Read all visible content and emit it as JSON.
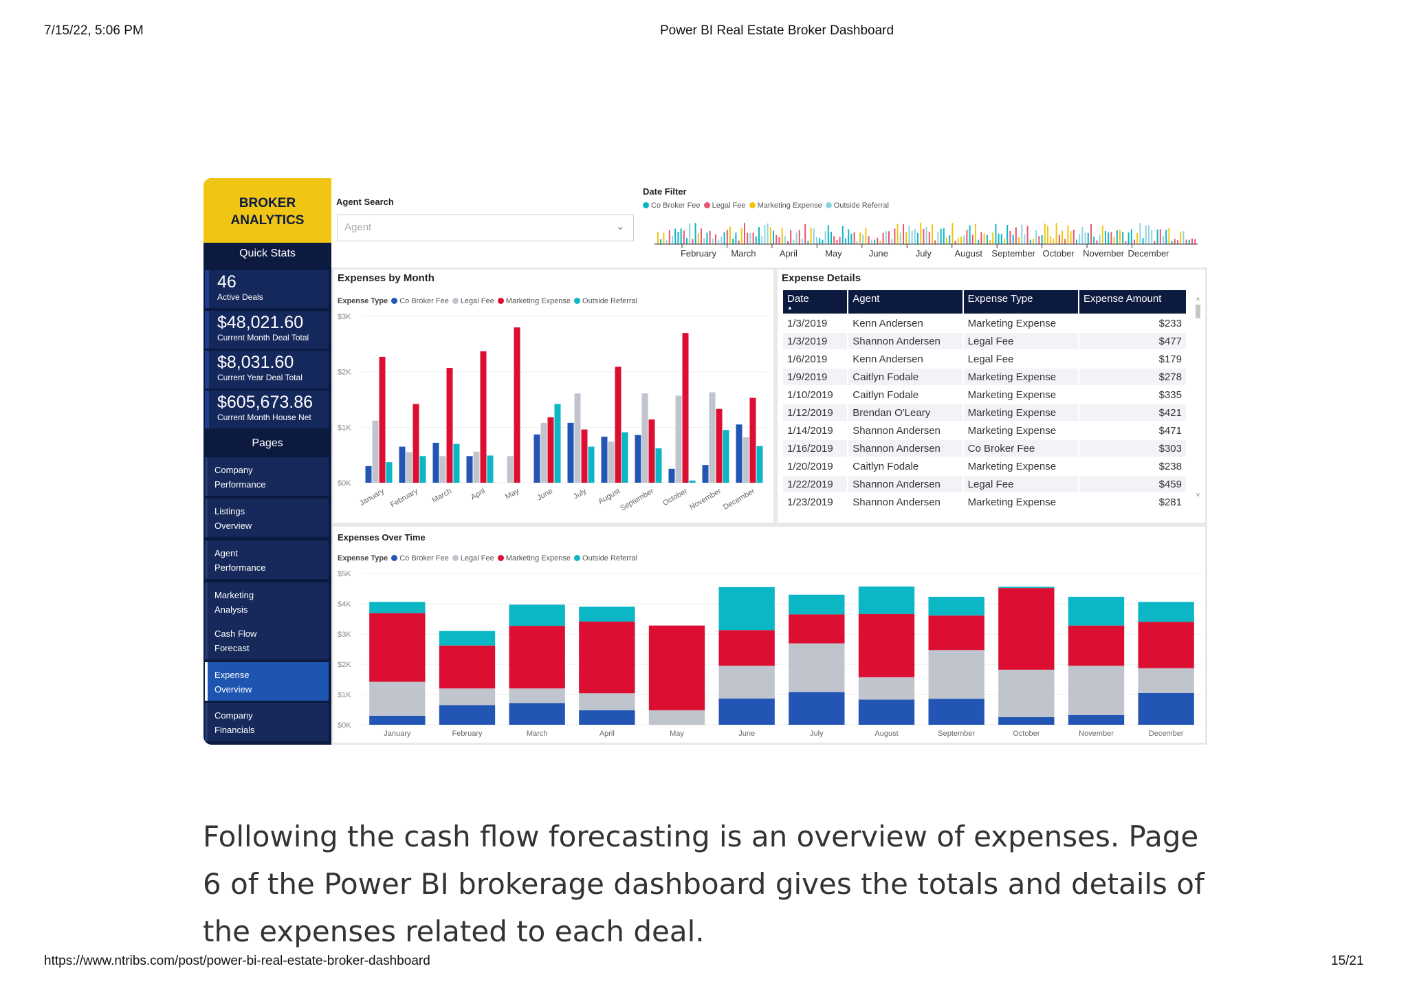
{
  "print_header": {
    "datetime": "7/15/22, 5:06 PM",
    "title": "Power BI Real Estate Broker Dashboard"
  },
  "print_footer": {
    "url": "https://www.ntribs.com/post/power-bi-real-estate-broker-dashboard",
    "page": "15/21"
  },
  "paragraph": "Following the cash flow forecasting is an overview of expenses. Page 6 of the Power BI brokerage dashboard gives the totals and details of the expenses related to each deal.",
  "sidebar": {
    "brand_line1": "BROKER",
    "brand_line2": "ANALYTICS",
    "quick_stats_label": "Quick Stats",
    "stats": [
      {
        "value": "46",
        "label": "Active Deals"
      },
      {
        "value": "$48,021.60",
        "label": "Current Month Deal Total"
      },
      {
        "value": "$8,031.60",
        "label": "Current Year Deal Total"
      },
      {
        "value": "$605,673.86",
        "label": "Current Month House Net"
      }
    ],
    "pages_label": "Pages",
    "pages": [
      {
        "line1": "Company",
        "line2": "Performance"
      },
      {
        "line1": "Listings",
        "line2": "Overview"
      },
      {
        "line1": "Agent",
        "line2": "Performance"
      },
      {
        "line1": "Marketing",
        "line2": "Analysis"
      },
      {
        "line1": "Cash Flow",
        "line2": "Forecast"
      },
      {
        "line1": "Expense",
        "line2": "Overview"
      },
      {
        "line1": "Company",
        "line2": "Financials"
      }
    ],
    "active_page": 5
  },
  "agent_search": {
    "label": "Agent Search",
    "placeholder": "Agent"
  },
  "date_filter": {
    "label": "Date Filter",
    "months": [
      "February",
      "March",
      "April",
      "May",
      "June",
      "July",
      "August",
      "September",
      "October",
      "November",
      "December"
    ]
  },
  "legend": {
    "key": "Expense Type",
    "items": [
      {
        "name": "Co Broker Fee",
        "color": "#2356b4"
      },
      {
        "name": "Legal Fee",
        "color": "#bfc4cd"
      },
      {
        "name": "Marketing Expense",
        "color": "#dc0f32"
      },
      {
        "name": "Outside Referral",
        "color": "#0bb6c5"
      }
    ],
    "date_filter_colors": [
      "#0bb6c5",
      "#e8556e",
      "#f2c40f",
      "#8fd3e0"
    ]
  },
  "expense_details": {
    "title": "Expense Details",
    "columns": [
      "Date",
      "Agent",
      "Expense Type",
      "Expense Amount"
    ],
    "rows": [
      [
        "1/3/2019",
        "Kenn Andersen",
        "Marketing Expense",
        "$233"
      ],
      [
        "1/3/2019",
        "Shannon Andersen",
        "Legal Fee",
        "$477"
      ],
      [
        "1/6/2019",
        "Kenn Andersen",
        "Legal Fee",
        "$179"
      ],
      [
        "1/9/2019",
        "Caitlyn Fodale",
        "Marketing Expense",
        "$278"
      ],
      [
        "1/10/2019",
        "Caitlyn Fodale",
        "Marketing Expense",
        "$335"
      ],
      [
        "1/12/2019",
        "Brendan O'Leary",
        "Marketing Expense",
        "$421"
      ],
      [
        "1/14/2019",
        "Shannon Andersen",
        "Marketing Expense",
        "$471"
      ],
      [
        "1/16/2019",
        "Shannon Andersen",
        "Co Broker Fee",
        "$303"
      ],
      [
        "1/20/2019",
        "Caitlyn Fodale",
        "Marketing Expense",
        "$238"
      ],
      [
        "1/22/2019",
        "Shannon Andersen",
        "Legal Fee",
        "$459"
      ],
      [
        "1/23/2019",
        "Shannon Andersen",
        "Marketing Expense",
        "$281"
      ]
    ]
  },
  "chart_data": [
    {
      "type": "bar",
      "title": "Expenses by Month",
      "categories": [
        "January",
        "February",
        "March",
        "April",
        "May",
        "June",
        "July",
        "August",
        "September",
        "October",
        "November",
        "December"
      ],
      "yticks": [
        "$0K",
        "$1K",
        "$2K",
        "$3K"
      ],
      "ylim": [
        0,
        3000
      ],
      "series": [
        {
          "name": "Co Broker Fee",
          "values": [
            300,
            650,
            720,
            480,
            0,
            870,
            1080,
            830,
            860,
            250,
            320,
            1050
          ]
        },
        {
          "name": "Legal Fee",
          "values": [
            1120,
            550,
            480,
            560,
            480,
            1080,
            1610,
            740,
            1610,
            1570,
            1630,
            820
          ]
        },
        {
          "name": "Marketing Expense",
          "values": [
            2270,
            1420,
            2070,
            2370,
            2800,
            1180,
            960,
            2090,
            1140,
            2700,
            1330,
            1530
          ]
        },
        {
          "name": "Outside Referral",
          "values": [
            370,
            480,
            700,
            490,
            0,
            1420,
            650,
            910,
            620,
            40,
            950,
            660
          ]
        }
      ]
    },
    {
      "type": "bar",
      "stacked": true,
      "title": "Expenses Over Time",
      "categories": [
        "January",
        "February",
        "March",
        "April",
        "May",
        "June",
        "July",
        "August",
        "September",
        "October",
        "November",
        "December"
      ],
      "yticks": [
        "$0K",
        "$1K",
        "$2K",
        "$3K",
        "$4K",
        "$5K"
      ],
      "ylim": [
        0,
        5000
      ],
      "series": [
        {
          "name": "Co Broker Fee",
          "values": [
            300,
            650,
            720,
            480,
            0,
            870,
            1080,
            830,
            860,
            250,
            320,
            1050
          ]
        },
        {
          "name": "Legal Fee",
          "values": [
            1120,
            550,
            480,
            560,
            480,
            1080,
            1610,
            740,
            1610,
            1570,
            1630,
            820
          ]
        },
        {
          "name": "Marketing Expense",
          "values": [
            2270,
            1420,
            2070,
            2370,
            2800,
            1180,
            960,
            2090,
            1140,
            2700,
            1330,
            1530
          ]
        },
        {
          "name": "Outside Referral",
          "values": [
            370,
            480,
            700,
            490,
            0,
            1420,
            650,
            910,
            620,
            40,
            950,
            660
          ]
        }
      ]
    }
  ]
}
